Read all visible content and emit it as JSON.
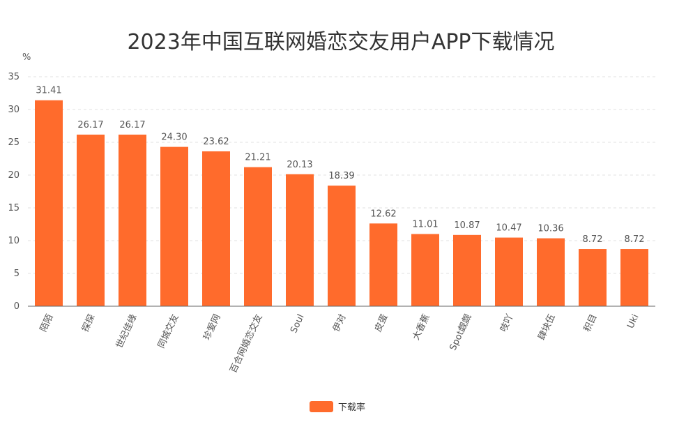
{
  "chart_data": {
    "type": "bar",
    "title": "2023年中国互联网婚恋交友用户APP下载情况",
    "ylabel": "%",
    "xlabel": "",
    "ylim": [
      0,
      35
    ],
    "yticks": [
      0,
      5,
      10,
      15,
      20,
      25,
      30,
      35
    ],
    "grid": true,
    "legend_position": "bottom",
    "categories": [
      "陌陌",
      "探探",
      "世纪佳缘",
      "同城交友",
      "珍爱网",
      "百合网婚恋交友",
      "Soul",
      "伊对",
      "皮蛋",
      "大香蕉",
      "Spot觑觑",
      "吱吖",
      "肆块伍",
      "积目",
      "Uki"
    ],
    "series": [
      {
        "name": "下载率",
        "color": "#FF6B2C",
        "values": [
          31.41,
          26.17,
          26.17,
          24.3,
          23.62,
          21.21,
          20.13,
          18.39,
          12.62,
          11.01,
          10.87,
          10.47,
          10.36,
          8.72,
          8.72
        ],
        "labels": [
          "31.41",
          "26.17",
          "26.17",
          "24.30",
          "23.62",
          "21.21",
          "20.13",
          "18.39",
          "12.62",
          "11.01",
          "10.87",
          "10.47",
          "10.36",
          "8.72",
          "8.72"
        ]
      }
    ]
  }
}
